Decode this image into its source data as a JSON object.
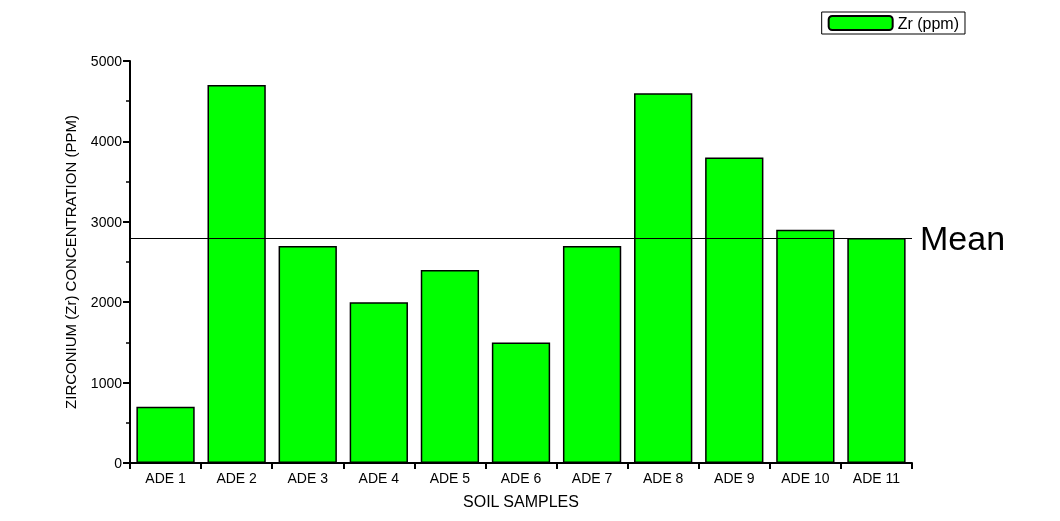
{
  "chart_data": {
    "type": "bar",
    "xlabel": "SOIL SAMPLES",
    "ylabel": "ZIRCONIUM (Zr) CONCENTRATION (PPM)",
    "categories": [
      "ADE 1",
      "ADE 2",
      "ADE 3",
      "ADE 4",
      "ADE 5",
      "ADE 6",
      "ADE 7",
      "ADE 8",
      "ADE 9",
      "ADE 10",
      "ADE 11"
    ],
    "series": [
      {
        "name": "Zr (ppm)",
        "color": "#00ff00",
        "values": [
          700,
          4700,
          2700,
          2000,
          2400,
          1500,
          2700,
          4600,
          3800,
          2900,
          2800
        ]
      }
    ],
    "ylim": [
      0,
      5000
    ],
    "yticks": [
      0,
      1000,
      2000,
      3000,
      4000,
      5000
    ],
    "grid": false,
    "legend": "top right",
    "ref_lines": [
      {
        "axis": "y",
        "value": 2800,
        "label": "Mean",
        "color": "#000000",
        "line_style": "solid"
      }
    ]
  }
}
